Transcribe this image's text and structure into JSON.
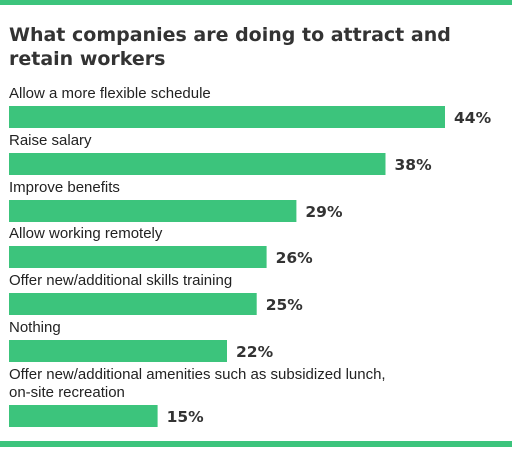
{
  "accent_color": "#3cc47c",
  "chart_data": {
    "type": "bar",
    "orientation": "horizontal",
    "title": "What companies are doing to attract and retain workers",
    "categories": [
      "Allow a more flexible schedule",
      "Raise salary",
      "Improve benefits",
      "Allow working remotely",
      "Offer new/additional skills training",
      "Nothing",
      "Offer new/additional amenities such as subsidized lunch, on-site recreation"
    ],
    "category_lines": [
      [
        "Allow a more flexible schedule"
      ],
      [
        "Raise salary"
      ],
      [
        "Improve benefits"
      ],
      [
        "Allow working remotely"
      ],
      [
        "Offer new/additional skills training"
      ],
      [
        "Nothing"
      ],
      [
        "Offer new/additional amenities such as subsidized lunch,",
        "on-site recreation"
      ]
    ],
    "values": [
      44,
      38,
      29,
      26,
      25,
      22,
      15
    ],
    "value_labels": [
      "44%",
      "38%",
      "29%",
      "26%",
      "25%",
      "22%",
      "15%"
    ],
    "unit": "%",
    "bar_color": "#3cc47c",
    "grid": false,
    "legend": "none"
  }
}
